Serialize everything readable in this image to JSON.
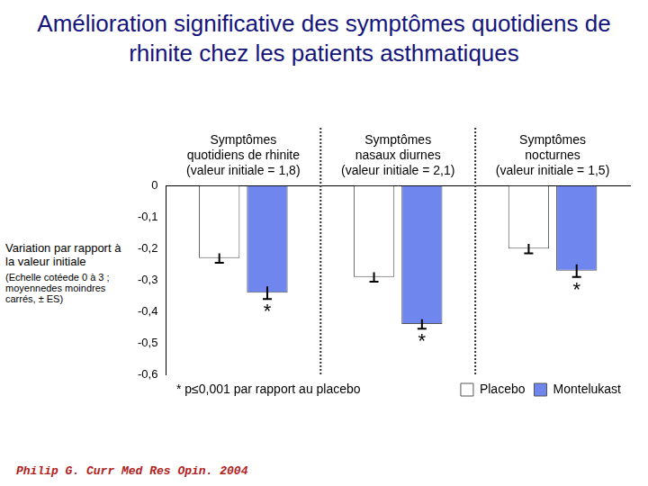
{
  "chart_data": {
    "type": "bar",
    "title": "Amélioration significative des symptômes quotidiens de rhinite chez les patients asthmatiques",
    "y_label": "Variation par rapport à la valeur initiale",
    "y_sublabel": "(Echelle cotéede 0 à 3 ; moyennedes moindres carrés, ± ES)",
    "categories": [
      [
        "Symptômes",
        "quotidiens de rhinite",
        "(valeur initiale = 1,8)"
      ],
      [
        "Symptômes",
        "nasaux diurnes",
        "(valeur initiale = 2,1)"
      ],
      [
        "Symptômes",
        "nocturnes",
        "(valeur initiale = 1,5)"
      ]
    ],
    "series": [
      {
        "name": "Placebo",
        "color": "#ffffff",
        "values": [
          -0.23,
          -0.29,
          -0.2
        ],
        "errors": [
          0.015,
          0.015,
          0.015
        ]
      },
      {
        "name": "Montelukast",
        "color": "#6f86ee",
        "values": [
          -0.34,
          -0.44,
          -0.27
        ],
        "errors": [
          0.02,
          0.015,
          0.02
        ]
      }
    ],
    "annotations": [
      {
        "category": 0,
        "series": 1,
        "text": "*"
      },
      {
        "category": 1,
        "series": 1,
        "text": "*"
      },
      {
        "category": 2,
        "series": 1,
        "text": "*"
      }
    ],
    "footnote": "* p≤0,001 par rapport au placebo",
    "source": "Philip G. Curr Med Res Opin. 2004",
    "ylim": [
      -0.6,
      0
    ],
    "yticks": [
      0,
      {
        "value": -0.1,
        "label": "-0,1"
      },
      {
        "value": -0.2,
        "label": "-0,2"
      },
      {
        "value": -0.3,
        "label": "-0,3"
      },
      {
        "value": -0.4,
        "label": "-0,4"
      },
      {
        "value": -0.5,
        "label": "-0,5"
      },
      {
        "value": -0.6,
        "label": "-0,6"
      }
    ],
    "grid": false,
    "legend": "bottom-right"
  }
}
